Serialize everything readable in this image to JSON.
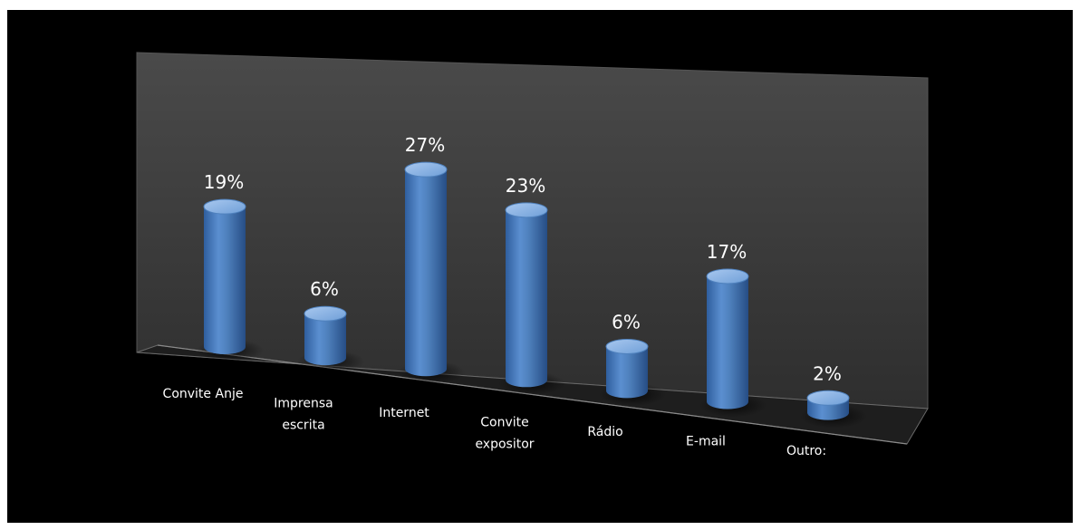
{
  "chart_data": {
    "type": "bar",
    "style": "3d-cylinder",
    "categories": [
      "Convite Anje",
      "Imprensa escrita",
      "Internet",
      "Convite expositor",
      "Rádio",
      "E-mail",
      "Outro:"
    ],
    "category_lines": [
      [
        "Convite Anje"
      ],
      [
        "Imprensa",
        "escrita"
      ],
      [
        "Internet"
      ],
      [
        "Convite",
        "expositor"
      ],
      [
        "Rádio"
      ],
      [
        "E-mail"
      ],
      [
        "Outro:"
      ]
    ],
    "values": [
      19,
      6,
      27,
      23,
      6,
      17,
      2
    ],
    "value_labels": [
      "19%",
      "6%",
      "27%",
      "23%",
      "6%",
      "17%",
      "2%"
    ],
    "unit": "%",
    "ylim": [
      0,
      30
    ],
    "title": "",
    "xlabel": "",
    "ylabel": "",
    "legend": "none",
    "grid": false,
    "colors": {
      "background": "#000000",
      "wall": "#3a3a3a",
      "floor": "#1e1e1e",
      "bar": "#4f81bd",
      "bar_light": "#8db3e2",
      "bar_dark": "#2c5aa0",
      "text": "#ffffff"
    }
  }
}
